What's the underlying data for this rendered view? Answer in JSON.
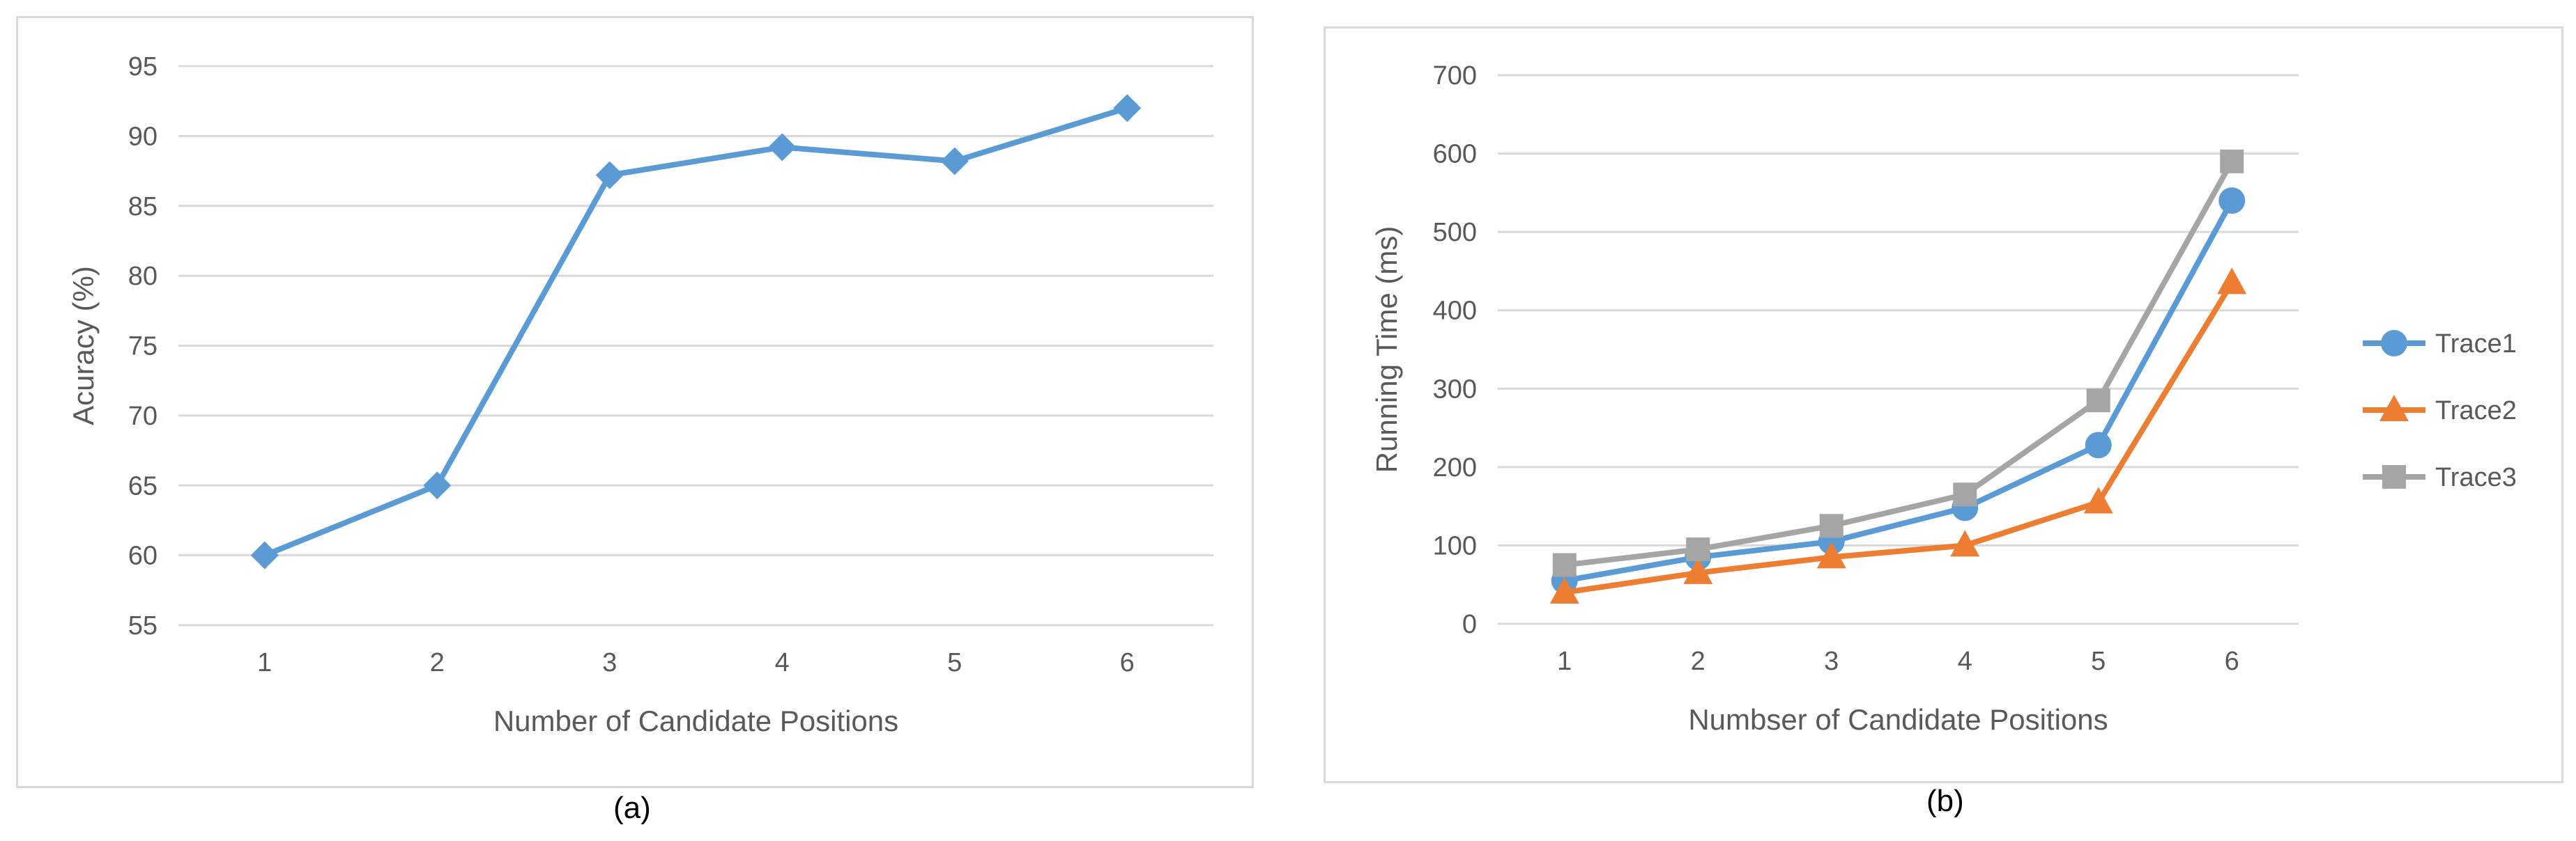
{
  "chart_data": [
    {
      "type": "line",
      "xlabel": "Number  of Candidate  Positions",
      "ylabel": "Acuracy (%)",
      "categories": [
        "1",
        "2",
        "3",
        "4",
        "5",
        "6"
      ],
      "ylim": [
        55,
        95
      ],
      "yticks": [
        "55",
        "60",
        "65",
        "70",
        "75",
        "80",
        "85",
        "90",
        "95"
      ],
      "grid": true,
      "legend": "none",
      "series": [
        {
          "values": [
            60,
            65,
            87.2,
            89.2,
            88.2,
            92
          ],
          "color": "#5b9bd5",
          "marker": "diamond"
        }
      ],
      "caption": "(a)"
    },
    {
      "type": "line",
      "xlabel": "Numbser  of Candidate  Positions",
      "ylabel": "Running  Time (ms)",
      "categories": [
        "1",
        "2",
        "3",
        "4",
        "5",
        "6"
      ],
      "ylim": [
        0,
        700
      ],
      "yticks": [
        "0",
        "100",
        "200",
        "300",
        "400",
        "500",
        "600",
        "700"
      ],
      "grid": true,
      "legend": "right",
      "series": [
        {
          "name": "Trace1",
          "values": [
            55,
            85,
            105,
            148,
            228,
            540
          ],
          "color": "#5b9bd5",
          "marker": "circle"
        },
        {
          "name": "Trace2",
          "values": [
            40,
            65,
            85,
            100,
            155,
            435
          ],
          "color": "#ed7d31",
          "marker": "triangle"
        },
        {
          "name": "Trace3",
          "values": [
            75,
            95,
            125,
            165,
            285,
            590
          ],
          "color": "#a5a5a5",
          "marker": "square"
        }
      ],
      "caption": "(b)"
    }
  ]
}
